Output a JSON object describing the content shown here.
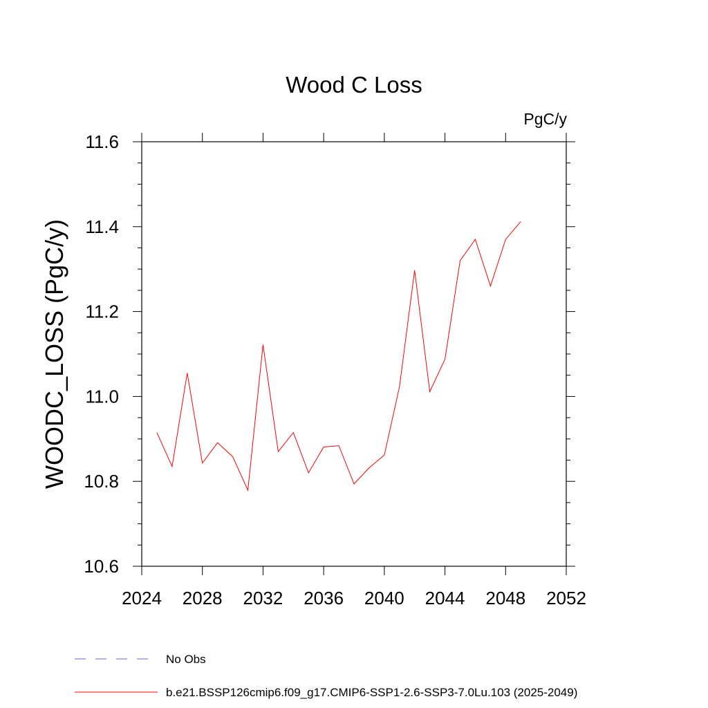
{
  "chart_data": {
    "type": "line",
    "title": "Wood C Loss",
    "units": "PgC/y",
    "ylabel": "WOODC_LOSS  (PgC/y)",
    "xlabel": "",
    "xlim": [
      2024,
      2052
    ],
    "ylim": [
      10.6,
      11.6
    ],
    "x_ticks": [
      2024,
      2028,
      2032,
      2036,
      2040,
      2044,
      2048,
      2052
    ],
    "x_tick_labels": [
      "2024",
      "2028",
      "2032",
      "2036",
      "2040",
      "2044",
      "2048",
      "2052"
    ],
    "y_ticks": [
      10.6,
      10.8,
      11.0,
      11.2,
      11.4,
      11.6
    ],
    "y_tick_labels": [
      "10.6",
      "10.8",
      "11.0",
      "11.2",
      "11.4",
      "11.6"
    ],
    "grid": false,
    "legend_position": "bottom",
    "series": [
      {
        "name": "b.e21.BSSP126cmip6.f09_g17.CMIP6-SSP1-2.6-SSP3-7.0Lu.103 (2025-2049)",
        "color": "#ff0000",
        "x": [
          2025,
          2026,
          2027,
          2028,
          2029,
          2030,
          2031,
          2032,
          2033,
          2034,
          2035,
          2036,
          2037,
          2038,
          2039,
          2040,
          2041,
          2042,
          2043,
          2044,
          2045,
          2046,
          2047,
          2048,
          2049
        ],
        "values": [
          10.915,
          10.835,
          11.055,
          10.843,
          10.891,
          10.858,
          10.779,
          11.122,
          10.87,
          10.915,
          10.82,
          10.881,
          10.884,
          10.794,
          10.832,
          10.862,
          11.023,
          11.297,
          11.011,
          11.088,
          11.32,
          11.37,
          11.26,
          11.37,
          11.412
        ]
      }
    ],
    "legend": [
      {
        "label": "No Obs",
        "color": "#6a5acd",
        "dash": "dashed"
      },
      {
        "label": "b.e21.BSSP126cmip6.f09_g17.CMIP6-SSP1-2.6-SSP3-7.0Lu.103 (2025-2049)",
        "color": "#ff0000",
        "dash": "solid"
      }
    ]
  }
}
